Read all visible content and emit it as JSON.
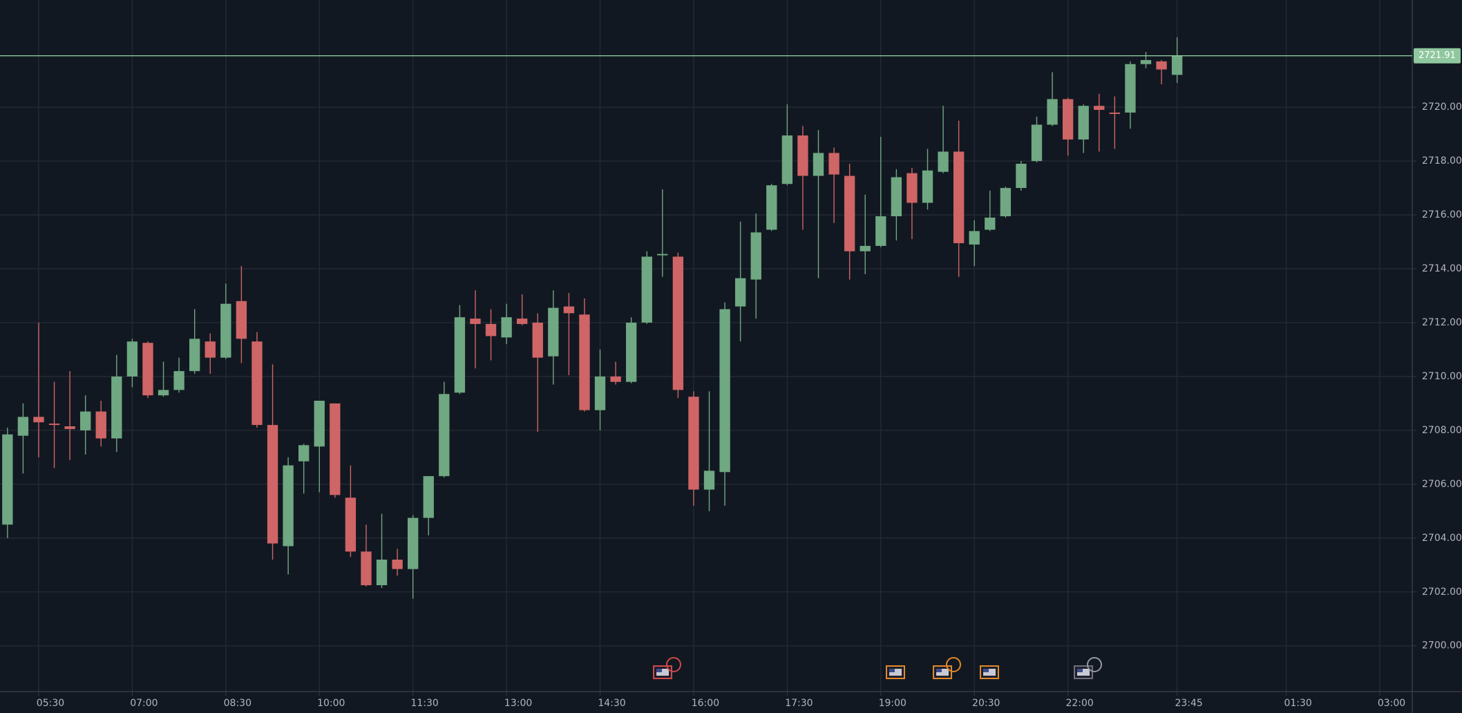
{
  "chart_data": {
    "type": "candlestick",
    "x": [
      5,
      5.25,
      5.5,
      5.75,
      6,
      6.25,
      6.5,
      6.75,
      7,
      7.25,
      7.5,
      7.75,
      8,
      8.25,
      8.5,
      8.75,
      9,
      9.25,
      9.5,
      9.75,
      10,
      10.25,
      10.5,
      10.75,
      11,
      11.25,
      11.5,
      11.75,
      12,
      12.25,
      12.5,
      12.75,
      13,
      13.25,
      13.5,
      13.75,
      14,
      14.25,
      14.5,
      14.75,
      15,
      15.25,
      15.5,
      15.75,
      16,
      16.25,
      16.5,
      16.75,
      17,
      17.25,
      17.5,
      17.75,
      18,
      18.25,
      18.5,
      18.75,
      19,
      19.25,
      19.5,
      19.75,
      20,
      20.25,
      20.5,
      20.75,
      21,
      21.25,
      21.5,
      21.75,
      22,
      22.25,
      22.5,
      22.75,
      23,
      23.25,
      23.5,
      23.75
    ],
    "open": [
      2704.5,
      2707.8,
      2708.5,
      2708.25,
      2708.15,
      2708.0,
      2708.7,
      2707.7,
      2710.0,
      2711.25,
      2709.3,
      2709.5,
      2710.2,
      2711.3,
      2710.7,
      2712.8,
      2711.3,
      2708.2,
      2703.7,
      2706.85,
      2707.4,
      2709.0,
      2705.5,
      2703.5,
      2702.25,
      2703.2,
      2702.85,
      2704.75,
      2706.3,
      2709.4,
      2712.15,
      2711.95,
      2711.45,
      2712.15,
      2712.0,
      2710.75,
      2712.6,
      2712.3,
      2708.75,
      2710.0,
      2709.8,
      2712.0,
      2714.5,
      2714.45,
      2709.25,
      2705.8,
      2706.45,
      2712.6,
      2713.6,
      2715.45,
      2717.15,
      2718.95,
      2717.45,
      2718.3,
      2717.45,
      2714.65,
      2714.85,
      2715.95,
      2717.55,
      2716.45,
      2717.6,
      2718.35,
      2714.9,
      2715.45,
      2715.95,
      2717.0,
      2718.0,
      2719.35,
      2720.3,
      2718.8,
      2720.05,
      2719.8,
      2719.8,
      2721.6,
      2721.7,
      2721.2
    ],
    "high": [
      2708.1,
      2709.0,
      2712.0,
      2709.8,
      2710.2,
      2709.3,
      2709.1,
      2710.8,
      2711.4,
      2711.3,
      2710.55,
      2710.7,
      2712.5,
      2711.6,
      2713.45,
      2714.1,
      2711.65,
      2710.45,
      2707.0,
      2707.5,
      2709.1,
      2709.0,
      2706.7,
      2704.5,
      2704.9,
      2703.6,
      2704.85,
      2706.3,
      2709.8,
      2712.65,
      2713.2,
      2712.5,
      2712.7,
      2713.05,
      2712.35,
      2713.2,
      2713.1,
      2712.9,
      2711.0,
      2710.55,
      2712.2,
      2714.65,
      2716.95,
      2714.6,
      2709.45,
      2709.45,
      2712.75,
      2715.75,
      2716.05,
      2717.15,
      2720.1,
      2719.3,
      2719.15,
      2718.5,
      2717.9,
      2716.75,
      2718.9,
      2717.7,
      2717.75,
      2718.45,
      2720.05,
      2719.5,
      2715.8,
      2716.9,
      2717.05,
      2718.0,
      2719.65,
      2721.3,
      2720.35,
      2720.1,
      2720.5,
      2720.4,
      2721.7,
      2722.05,
      2721.75,
      2722.6
    ],
    "low": [
      2704.0,
      2706.4,
      2707.0,
      2706.6,
      2706.9,
      2707.1,
      2707.4,
      2707.2,
      2709.6,
      2709.2,
      2709.25,
      2709.4,
      2710.1,
      2710.1,
      2710.65,
      2710.5,
      2708.1,
      2703.2,
      2702.65,
      2705.65,
      2705.7,
      2705.5,
      2703.3,
      2702.2,
      2702.15,
      2702.6,
      2701.75,
      2704.1,
      2706.25,
      2709.35,
      2710.3,
      2710.6,
      2711.2,
      2711.9,
      2707.95,
      2709.7,
      2710.05,
      2708.7,
      2708.0,
      2709.7,
      2709.75,
      2711.95,
      2713.7,
      2709.2,
      2705.2,
      2705.0,
      2705.2,
      2711.3,
      2712.15,
      2715.4,
      2717.1,
      2715.45,
      2713.65,
      2715.7,
      2713.6,
      2713.8,
      2714.8,
      2715.05,
      2715.1,
      2716.2,
      2717.55,
      2713.7,
      2714.1,
      2715.4,
      2715.9,
      2716.9,
      2717.95,
      2719.3,
      2718.2,
      2718.3,
      2718.35,
      2718.45,
      2719.2,
      2721.45,
      2720.85,
      2720.9
    ],
    "close": [
      2707.85,
      2708.5,
      2708.3,
      2708.2,
      2708.05,
      2708.7,
      2707.7,
      2710.0,
      2711.3,
      2709.3,
      2709.5,
      2710.2,
      2711.4,
      2710.7,
      2712.7,
      2711.4,
      2708.2,
      2703.8,
      2706.7,
      2707.45,
      2709.1,
      2705.6,
      2703.5,
      2702.25,
      2703.2,
      2702.85,
      2704.75,
      2706.3,
      2709.35,
      2712.2,
      2711.95,
      2711.5,
      2712.2,
      2711.95,
      2710.7,
      2712.55,
      2712.35,
      2708.75,
      2710.0,
      2709.8,
      2712.0,
      2714.45,
      2714.55,
      2709.5,
      2705.8,
      2706.5,
      2712.5,
      2713.65,
      2715.35,
      2717.1,
      2718.95,
      2717.45,
      2718.3,
      2717.5,
      2714.65,
      2714.85,
      2715.95,
      2717.4,
      2716.45,
      2717.65,
      2718.35,
      2714.95,
      2715.4,
      2715.9,
      2717.0,
      2717.9,
      2719.35,
      2720.3,
      2718.8,
      2720.05,
      2719.9,
      2719.75,
      2721.6,
      2721.75,
      2721.4,
      2721.91
    ],
    "up_color": "#6fa882",
    "down_color": "#cf6566",
    "xlim": [
      4.88,
      27.52
    ],
    "xticks": [
      {
        "value": 5.5,
        "label": "05:30"
      },
      {
        "value": 7,
        "label": "07:00"
      },
      {
        "value": 8.5,
        "label": "08:30"
      },
      {
        "value": 10,
        "label": "10:00"
      },
      {
        "value": 11.5,
        "label": "11:30"
      },
      {
        "value": 13,
        "label": "13:00"
      },
      {
        "value": 14.5,
        "label": "14:30"
      },
      {
        "value": 16,
        "label": "16:00"
      },
      {
        "value": 17.5,
        "label": "17:30"
      },
      {
        "value": 19,
        "label": "19:00"
      },
      {
        "value": 20.5,
        "label": "20:30"
      },
      {
        "value": 22,
        "label": "22:00"
      },
      {
        "value": 23.75,
        "label": "23:45"
      },
      {
        "value": 25.5,
        "label": "01:30"
      },
      {
        "value": 27,
        "label": "03:00"
      }
    ],
    "ylim": [
      2698.3,
      2723.98
    ],
    "yticks": [
      {
        "value": 2700,
        "label": "2700.00"
      },
      {
        "value": 2702,
        "label": "2702.00"
      },
      {
        "value": 2704,
        "label": "2704.00"
      },
      {
        "value": 2706,
        "label": "2706.00"
      },
      {
        "value": 2708,
        "label": "2708.00"
      },
      {
        "value": 2710,
        "label": "2710.00"
      },
      {
        "value": 2712,
        "label": "2712.00"
      },
      {
        "value": 2714,
        "label": "2714.00"
      },
      {
        "value": 2716,
        "label": "2716.00"
      },
      {
        "value": 2718,
        "label": "2718.00"
      },
      {
        "value": 2720,
        "label": "2720.00"
      }
    ],
    "grid": true,
    "last_price": 2721.91,
    "last_price_color": "#8fc79e"
  }
}
